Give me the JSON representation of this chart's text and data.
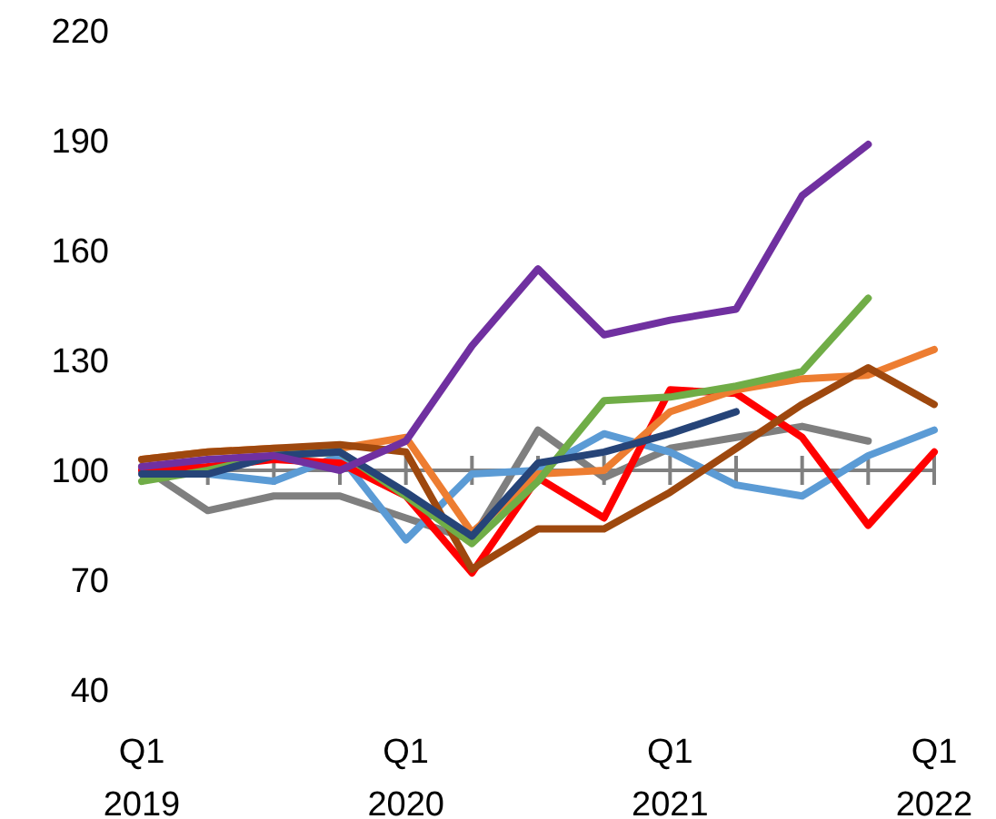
{
  "chart_data": {
    "type": "line",
    "categories": [
      "Q1\n2019",
      null,
      null,
      null,
      "Q1\n2020",
      null,
      null,
      null,
      "Q1\n2021",
      null,
      null,
      null,
      "Q1\n2022"
    ],
    "series": [
      {
        "color": "#7f7f7f",
        "values": [
          101,
          89,
          93,
          93,
          87,
          81,
          111,
          98,
          106,
          109,
          112,
          108,
          null
        ]
      },
      {
        "color": "#5b9bd5",
        "values": [
          100,
          99,
          97,
          104,
          81,
          99,
          100,
          110,
          105,
          96,
          93,
          104,
          111
        ]
      },
      {
        "color": "#ff0000",
        "values": [
          100,
          101,
          103,
          102,
          93,
          72,
          98,
          87,
          122,
          121,
          109,
          85,
          105
        ]
      },
      {
        "color": "#ed7d31",
        "values": [
          103,
          105,
          106,
          106,
          109,
          83,
          99,
          100,
          116,
          122,
          125,
          126,
          133
        ]
      },
      {
        "color": "#9e480e",
        "values": [
          103,
          105,
          106,
          107,
          105,
          73,
          84,
          84,
          94,
          106,
          118,
          128,
          118
        ]
      },
      {
        "color": "#70ad47",
        "values": [
          97,
          100,
          104,
          105,
          93,
          80,
          97,
          119,
          120,
          123,
          127,
          147,
          null
        ]
      },
      {
        "color": "#264478",
        "values": [
          99,
          99,
          104,
          105,
          94,
          82,
          102,
          105,
          110,
          116,
          null,
          null,
          null
        ]
      },
      {
        "color": "#7030a0",
        "values": [
          101,
          103,
          104,
          100,
          108,
          134,
          155,
          137,
          141,
          144,
          175,
          189,
          null
        ]
      }
    ],
    "ylim": [
      40,
      220
    ],
    "yticks": [
      40,
      70,
      100,
      130,
      160,
      190,
      220
    ],
    "grid": false,
    "ref_lines": [
      {
        "axis": "y",
        "value": 100,
        "color": "#808080"
      }
    ]
  }
}
